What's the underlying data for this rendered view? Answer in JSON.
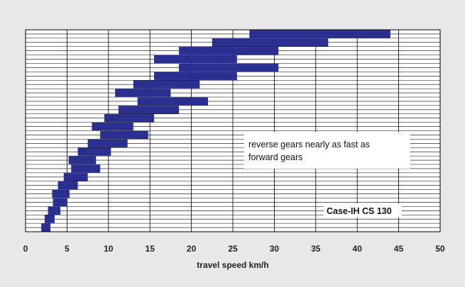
{
  "chart_data": {
    "type": "bar",
    "orientation": "horizontal-range",
    "title": "",
    "xlabel": "travel speed km/h",
    "ylabel": "",
    "xlim": [
      0,
      50
    ],
    "xticks": [
      0,
      5,
      10,
      15,
      20,
      25,
      30,
      35,
      40,
      45,
      50
    ],
    "grid": true,
    "annotations": {
      "note": [
        "reverse gears nearly as fast as",
        "forward gears"
      ],
      "model": "Case-IH CS 130"
    },
    "bars": [
      {
        "start": 27.0,
        "end": 44.0
      },
      {
        "start": 22.5,
        "end": 36.5
      },
      {
        "start": 18.5,
        "end": 30.5
      },
      {
        "start": 15.5,
        "end": 25.5
      },
      {
        "start": 18.5,
        "end": 30.5
      },
      {
        "start": 15.5,
        "end": 25.5
      },
      {
        "start": 13.0,
        "end": 21.0
      },
      {
        "start": 10.8,
        "end": 17.5
      },
      {
        "start": 13.5,
        "end": 22.0
      },
      {
        "start": 11.2,
        "end": 18.5
      },
      {
        "start": 9.5,
        "end": 15.5
      },
      {
        "start": 8.0,
        "end": 13.0
      },
      {
        "start": 9.0,
        "end": 14.8
      },
      {
        "start": 7.5,
        "end": 12.3
      },
      {
        "start": 6.3,
        "end": 10.3
      },
      {
        "start": 5.2,
        "end": 8.5
      },
      {
        "start": 5.5,
        "end": 9.0
      },
      {
        "start": 4.6,
        "end": 7.5
      },
      {
        "start": 3.9,
        "end": 6.3
      },
      {
        "start": 3.2,
        "end": 5.3
      },
      {
        "start": 3.3,
        "end": 5.0
      },
      {
        "start": 2.7,
        "end": 4.2
      },
      {
        "start": 2.3,
        "end": 3.5
      },
      {
        "start": 1.9,
        "end": 3.0
      }
    ],
    "bar_color": "#2b2f8f"
  }
}
